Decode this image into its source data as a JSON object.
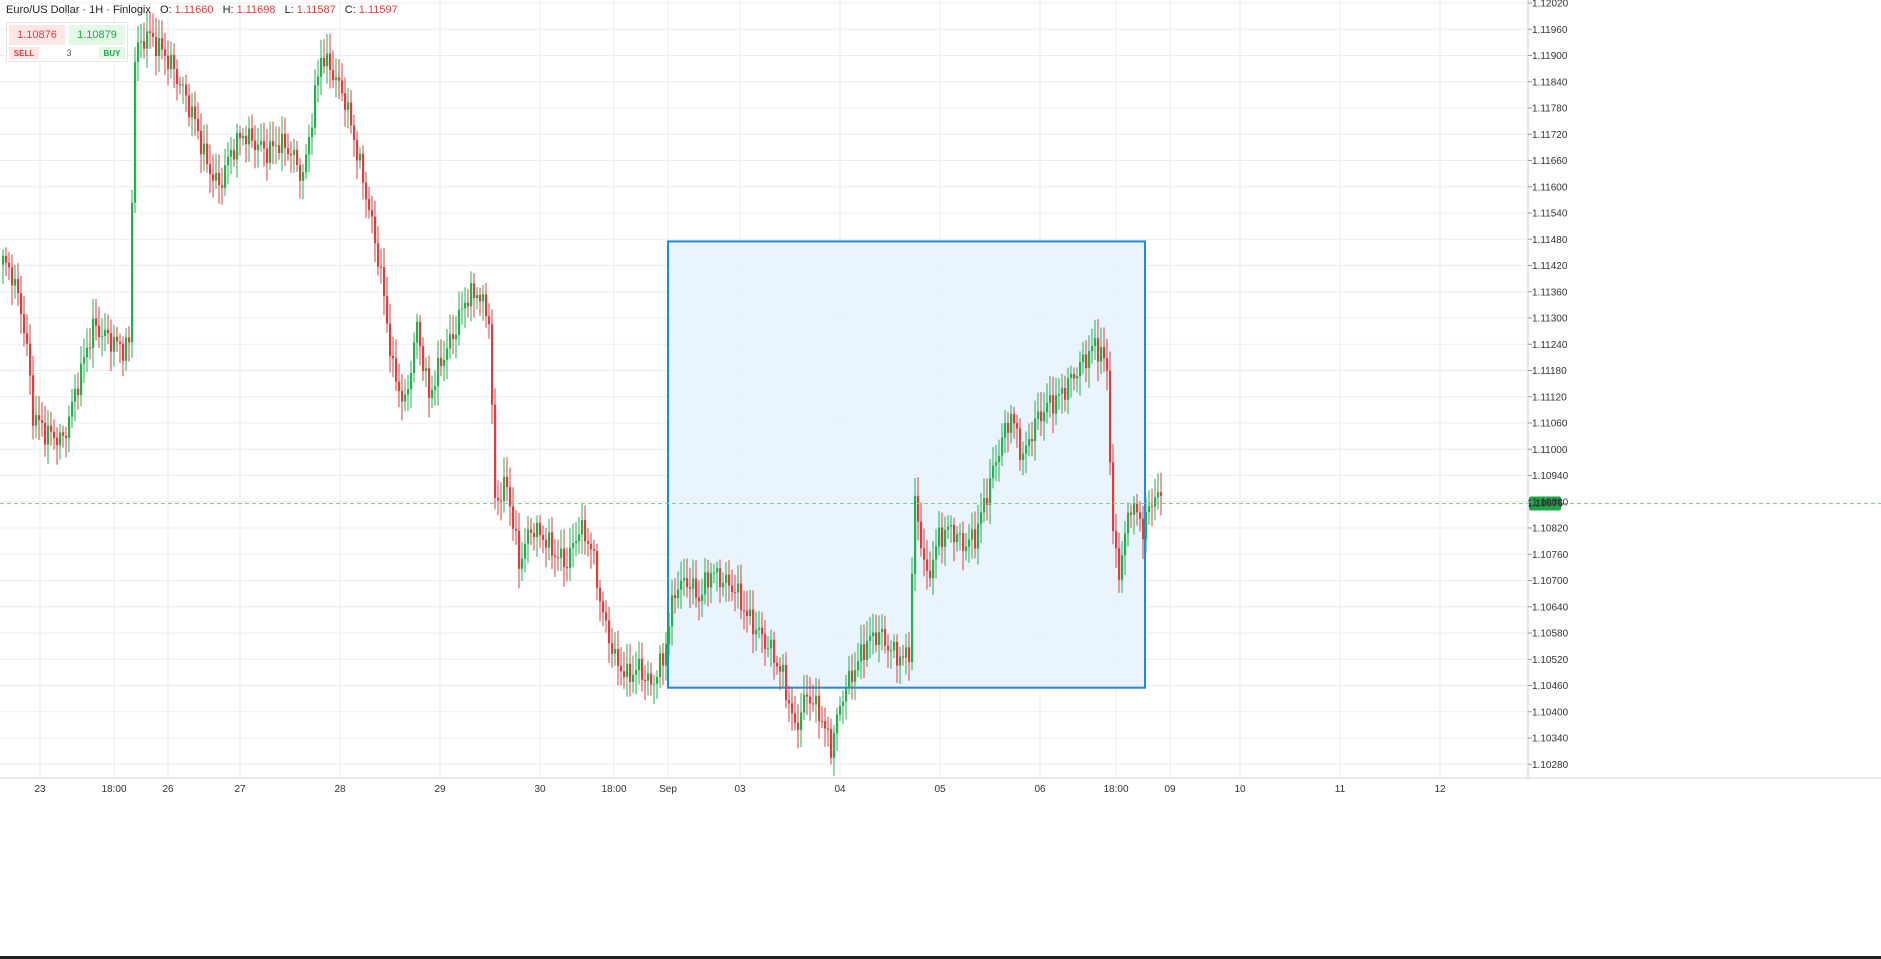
{
  "header": {
    "instrument": "Euro/US Dollar · 1H · Finlogix",
    "o_label": "O:",
    "o_value": "1.11660",
    "h_label": "H:",
    "h_value": "1.11698",
    "l_label": "L:",
    "l_value": "1.11587",
    "c_label": "C:",
    "c_value": "1.11597"
  },
  "trade_panel": {
    "sell_price": "1.10876",
    "buy_price": "1.10879",
    "sell_label": "SELL",
    "buy_label": "BUY",
    "quantity": "3"
  },
  "colors": {
    "up": "#22b14c",
    "down": "#e23b3b",
    "grid": "#ececec",
    "rect_fill": "#e6f2fd",
    "rect_stroke": "#1e88e5",
    "price_line": "#7fd08f",
    "price_badge": "#1aa84a"
  },
  "chart_data": {
    "type": "candlestick",
    "instrument": "Euro/US Dollar",
    "timeframe": "1H",
    "y_ticks": [
      "1.12020",
      "1.11960",
      "1.11900",
      "1.11840",
      "1.11780",
      "1.11720",
      "1.11660",
      "1.11600",
      "1.11540",
      "1.11480",
      "1.11420",
      "1.11360",
      "1.11300",
      "1.11240",
      "1.11180",
      "1.11120",
      "1.11060",
      "1.11000",
      "1.10940",
      "1.10880",
      "1.10820",
      "1.10760",
      "1.10700",
      "1.10640",
      "1.10580",
      "1.10520",
      "1.10460",
      "1.10400",
      "1.10340",
      "1.10280"
    ],
    "ylim": [
      1.1026,
      1.1202
    ],
    "x_labels": [
      "23",
      "18:00",
      "26",
      "27",
      "28",
      "29",
      "30",
      "18:00",
      "Sep",
      "03",
      "04",
      "05",
      "06",
      "18:00",
      "09",
      "10",
      "11",
      "12"
    ],
    "last_price": "1.10876",
    "rectangle": {
      "x_start": "Sep",
      "x_end": "18:00 Sep 06",
      "y_top": 1.11475,
      "y_bottom": 1.10455
    },
    "series": [
      {
        "anchors": [
          [
            0,
            1.1143
          ],
          [
            3,
            1.114
          ],
          [
            6,
            1.1132
          ],
          [
            8,
            1.1123
          ],
          [
            10,
            1.1108
          ],
          [
            14,
            1.1104
          ],
          [
            20,
            1.1102
          ],
          [
            26,
            1.1118
          ],
          [
            30,
            1.1128
          ],
          [
            34,
            1.1126
          ],
          [
            40,
            1.1123
          ],
          [
            42,
            1.1124
          ],
          [
            44,
            1.119
          ],
          [
            48,
            1.1195
          ],
          [
            52,
            1.1192
          ],
          [
            56,
            1.1188
          ],
          [
            60,
            1.1182
          ],
          [
            64,
            1.1175
          ],
          [
            68,
            1.1165
          ],
          [
            72,
            1.116
          ],
          [
            76,
            1.1168
          ],
          [
            80,
            1.1172
          ],
          [
            84,
            1.117
          ],
          [
            88,
            1.1168
          ],
          [
            92,
            1.117
          ],
          [
            96,
            1.1168
          ],
          [
            100,
            1.1162
          ],
          [
            106,
            1.119
          ],
          [
            110,
            1.1186
          ],
          [
            114,
            1.118
          ],
          [
            118,
            1.1168
          ],
          [
            122,
            1.1155
          ],
          [
            126,
            1.114
          ],
          [
            130,
            1.1118
          ],
          [
            134,
            1.111
          ],
          [
            138,
            1.1128
          ],
          [
            142,
            1.1112
          ],
          [
            146,
            1.112
          ],
          [
            150,
            1.1126
          ],
          [
            154,
            1.1134
          ],
          [
            158,
            1.1136
          ],
          [
            162,
            1.113
          ],
          [
            164,
            1.1088
          ],
          [
            168,
            1.1092
          ],
          [
            172,
            1.1074
          ],
          [
            176,
            1.1082
          ],
          [
            180,
            1.108
          ],
          [
            184,
            1.1076
          ],
          [
            188,
            1.1074
          ],
          [
            192,
            1.1082
          ],
          [
            196,
            1.1078
          ],
          [
            200,
            1.1062
          ],
          [
            204,
            1.1052
          ],
          [
            208,
            1.1048
          ],
          [
            212,
            1.105
          ],
          [
            216,
            1.1046
          ],
          [
            220,
            1.1052
          ],
          [
            224,
            1.1068
          ],
          [
            228,
            1.107
          ],
          [
            232,
            1.1066
          ],
          [
            236,
            1.1072
          ],
          [
            240,
            1.107
          ],
          [
            244,
            1.1068
          ],
          [
            248,
            1.1062
          ],
          [
            252,
            1.1058
          ],
          [
            256,
            1.1054
          ],
          [
            260,
            1.1048
          ],
          [
            264,
            1.1036
          ],
          [
            268,
            1.1044
          ],
          [
            272,
            1.104
          ],
          [
            276,
            1.1032
          ],
          [
            280,
            1.1044
          ],
          [
            284,
            1.105
          ],
          [
            288,
            1.1056
          ],
          [
            292,
            1.1058
          ],
          [
            296,
            1.1054
          ],
          [
            300,
            1.1052
          ],
          [
            302,
            1.1054
          ],
          [
            304,
            1.1088
          ],
          [
            308,
            1.107
          ],
          [
            312,
            1.108
          ],
          [
            316,
            1.1082
          ],
          [
            320,
            1.1078
          ],
          [
            324,
            1.108
          ],
          [
            328,
            1.109
          ],
          [
            332,
            1.11
          ],
          [
            336,
            1.1108
          ],
          [
            340,
            1.1098
          ],
          [
            344,
            1.1106
          ],
          [
            348,
            1.111
          ],
          [
            352,
            1.1112
          ],
          [
            356,
            1.1116
          ],
          [
            360,
            1.112
          ],
          [
            364,
            1.1124
          ],
          [
            366,
            1.1122
          ],
          [
            368,
            1.1118
          ],
          [
            370,
            1.108
          ],
          [
            372,
            1.1072
          ],
          [
            376,
            1.1088
          ],
          [
            380,
            1.1082
          ],
          [
            384,
            1.109
          ],
          [
            386,
            1.1088
          ]
        ]
      }
    ]
  }
}
